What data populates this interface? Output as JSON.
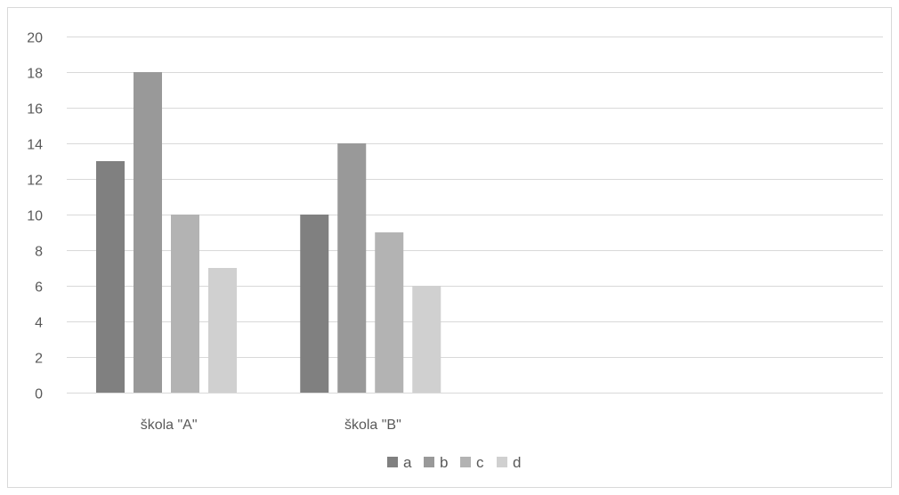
{
  "chart_data": {
    "type": "bar",
    "categories": [
      "škola \"A\"",
      "škola \"B\"",
      "",
      ""
    ],
    "series": [
      {
        "name": "a",
        "values": [
          13,
          10,
          null,
          null
        ],
        "color": "#808080"
      },
      {
        "name": "b",
        "values": [
          18,
          14,
          null,
          null
        ],
        "color": "#999999"
      },
      {
        "name": "c",
        "values": [
          10,
          9,
          null,
          null
        ],
        "color": "#b3b3b3"
      },
      {
        "name": "d",
        "values": [
          7,
          6,
          null,
          null
        ],
        "color": "#d0d0d0"
      }
    ],
    "ylim": [
      0,
      20
    ],
    "yticks": [
      0,
      2,
      4,
      6,
      8,
      10,
      12,
      14,
      16,
      18,
      20
    ],
    "grid": true,
    "legend_position": "bottom",
    "title": "",
    "xlabel": "",
    "ylabel": ""
  },
  "colors": {
    "gridline": "#d9d9d9",
    "axis_text": "#595959"
  }
}
